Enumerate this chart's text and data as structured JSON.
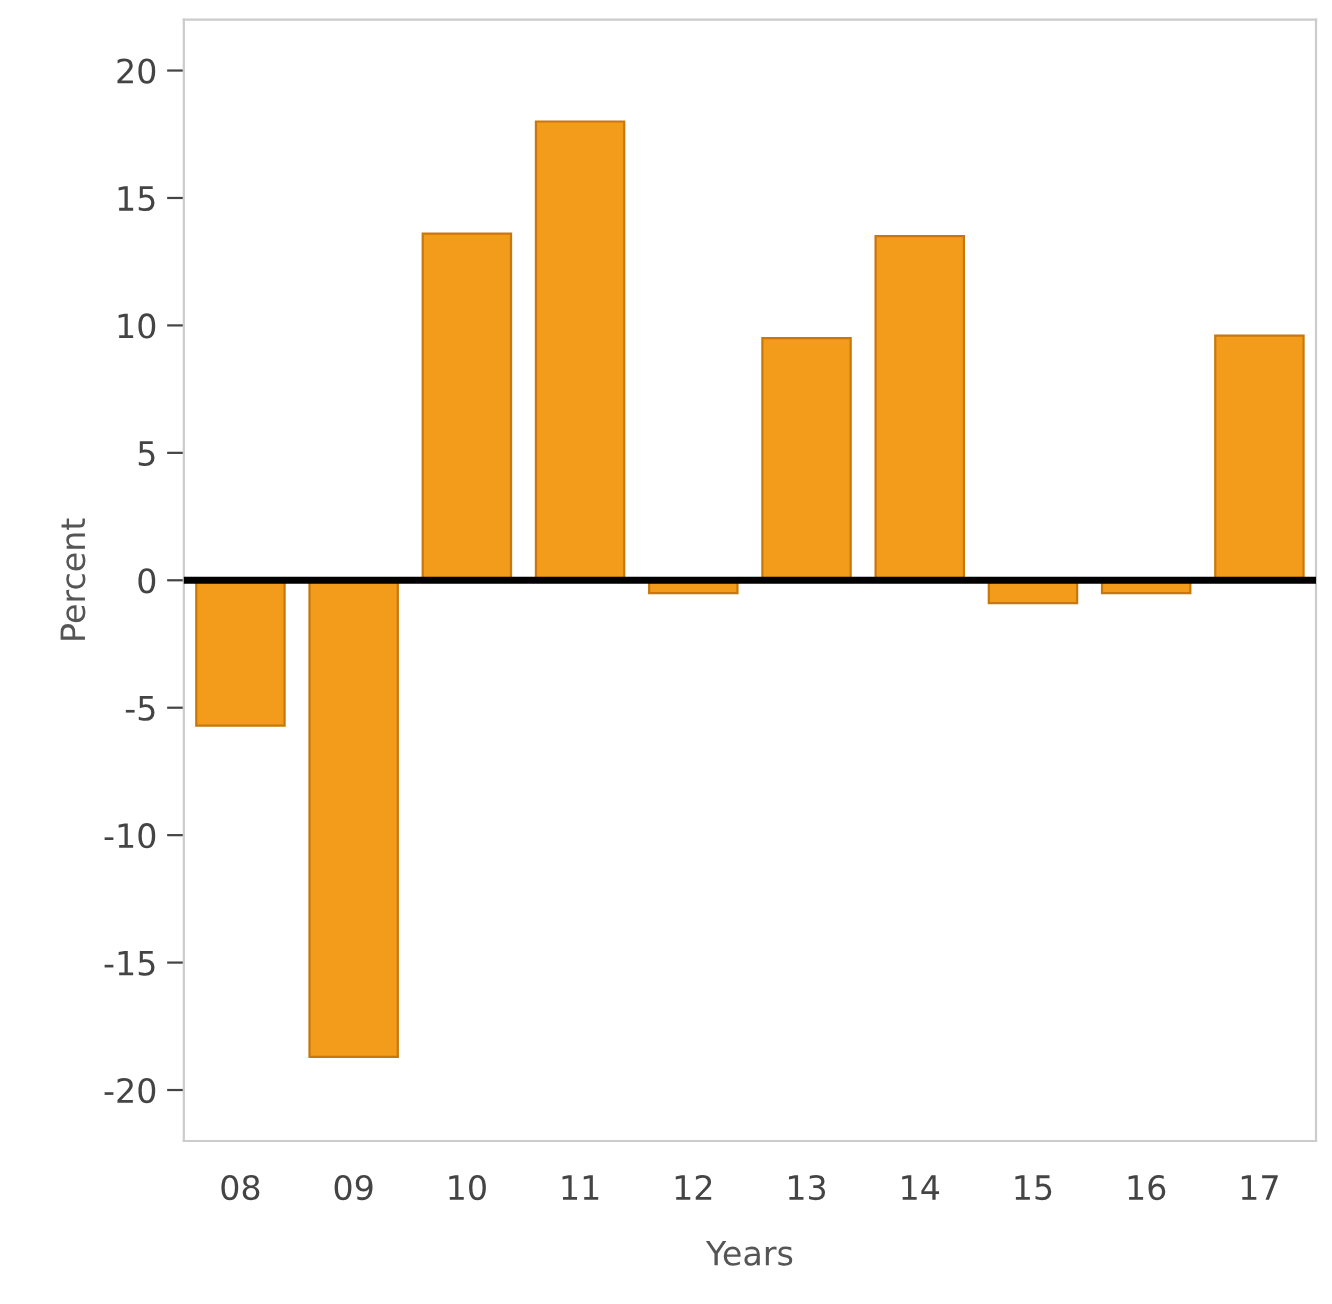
{
  "chart_data": {
    "type": "bar",
    "xlabel": "Years",
    "ylabel": "Percent",
    "categories": [
      "08",
      "09",
      "10",
      "11",
      "12",
      "13",
      "14",
      "15",
      "16",
      "17"
    ],
    "values": [
      -5.7,
      -18.7,
      13.6,
      18.0,
      -0.5,
      9.5,
      13.5,
      -0.9,
      -0.5,
      9.6
    ],
    "color": "#f39c1b",
    "ylim": [
      -22,
      22
    ],
    "yticks": [
      -20,
      -15,
      -10,
      -5,
      0,
      5,
      10,
      15,
      20
    ],
    "ref_lines": [
      {
        "axis": "y",
        "value": 0,
        "color": "#000000"
      }
    ],
    "grid": false,
    "legend": false
  }
}
